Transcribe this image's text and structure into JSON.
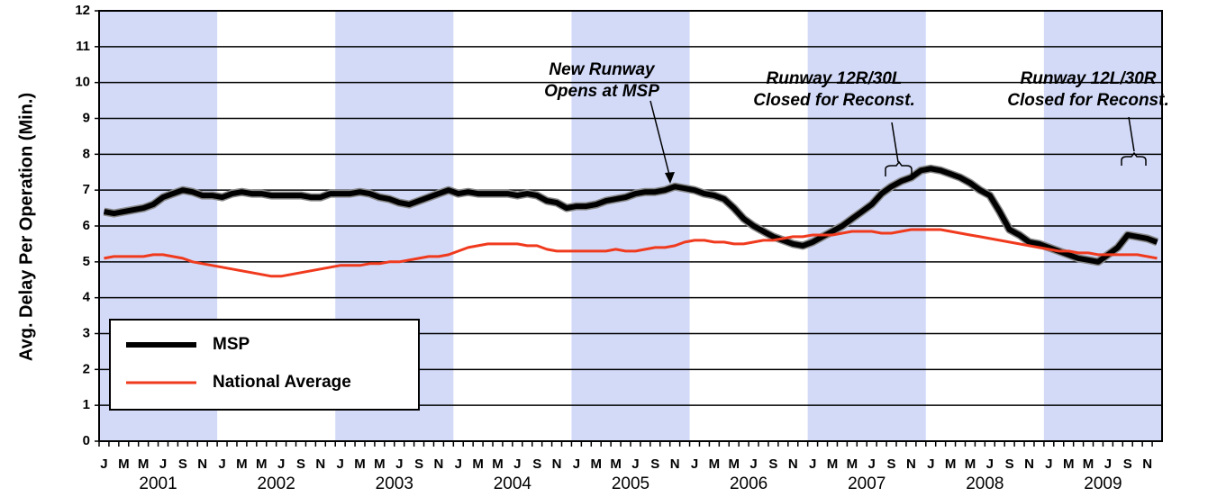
{
  "chart_data": {
    "type": "line",
    "ylabel": "Avg. Delay Per Operation (Min.)",
    "categories": [
      "J",
      null,
      "M",
      null,
      "M",
      null,
      "J",
      null,
      "S",
      null,
      "N",
      null,
      "J",
      null,
      "M",
      null,
      "M",
      null,
      "J",
      null,
      "S",
      null,
      "N",
      null,
      "J",
      null,
      "M",
      null,
      "M",
      null,
      "J",
      null,
      "S",
      null,
      "N",
      null,
      "J",
      null,
      "M",
      null,
      "M",
      null,
      "J",
      null,
      "S",
      null,
      "N",
      null,
      "J",
      null,
      "M",
      null,
      "M",
      null,
      "J",
      null,
      "S",
      null,
      "N",
      null,
      "J",
      null,
      "M",
      null,
      "M",
      null,
      "J",
      null,
      "S",
      null,
      "N",
      null,
      "J",
      null,
      "M",
      null,
      "M",
      null,
      "J",
      null,
      "S",
      null,
      "N",
      null,
      "J",
      null,
      "M",
      null,
      "M",
      null,
      "J",
      null,
      "S",
      null,
      "N",
      null,
      "J",
      null,
      "M",
      null,
      "M",
      null,
      "J",
      null,
      "S",
      null,
      "N",
      null
    ],
    "years": [
      "2001",
      "2002",
      "2003",
      "2004",
      "2005",
      "2006",
      "2007",
      "2008",
      "2009"
    ],
    "series": [
      {
        "name": "MSP",
        "color": "#000000",
        "values": [
          6.4,
          6.35,
          6.4,
          6.45,
          6.5,
          6.6,
          6.8,
          6.9,
          7.0,
          6.95,
          6.85,
          6.85,
          6.8,
          6.9,
          6.95,
          6.9,
          6.9,
          6.85,
          6.85,
          6.85,
          6.85,
          6.8,
          6.8,
          6.9,
          6.9,
          6.9,
          6.95,
          6.9,
          6.8,
          6.75,
          6.65,
          6.6,
          6.7,
          6.8,
          6.9,
          7.0,
          6.9,
          6.95,
          6.9,
          6.9,
          6.9,
          6.9,
          6.85,
          6.9,
          6.85,
          6.7,
          6.65,
          6.5,
          6.55,
          6.55,
          6.6,
          6.7,
          6.75,
          6.8,
          6.9,
          6.95,
          6.95,
          7.0,
          7.1,
          7.05,
          7.0,
          6.9,
          6.85,
          6.75,
          6.5,
          6.2,
          6.0,
          5.85,
          5.7,
          5.6,
          5.5,
          5.45,
          5.55,
          5.7,
          5.85,
          6.0,
          6.2,
          6.4,
          6.6,
          6.9,
          7.1,
          7.25,
          7.35,
          7.55,
          7.6,
          7.55,
          7.45,
          7.35,
          7.2,
          7.0,
          6.85,
          6.4,
          5.9,
          5.75,
          5.55,
          5.5,
          5.4,
          5.3,
          5.2,
          5.1,
          5.05,
          5.0,
          5.2,
          5.4,
          5.75,
          5.7,
          5.65,
          5.55
        ]
      },
      {
        "name": "National Average",
        "color": "#f03a1e",
        "values": [
          5.1,
          5.15,
          5.15,
          5.15,
          5.15,
          5.2,
          5.2,
          5.15,
          5.1,
          5.0,
          4.95,
          4.9,
          4.85,
          4.8,
          4.75,
          4.7,
          4.65,
          4.6,
          4.6,
          4.65,
          4.7,
          4.75,
          4.8,
          4.85,
          4.9,
          4.9,
          4.9,
          4.95,
          4.95,
          5.0,
          5.0,
          5.05,
          5.1,
          5.15,
          5.15,
          5.2,
          5.3,
          5.4,
          5.45,
          5.5,
          5.5,
          5.5,
          5.5,
          5.45,
          5.45,
          5.35,
          5.3,
          5.3,
          5.3,
          5.3,
          5.3,
          5.3,
          5.35,
          5.3,
          5.3,
          5.35,
          5.4,
          5.4,
          5.45,
          5.55,
          5.6,
          5.6,
          5.55,
          5.55,
          5.5,
          5.5,
          5.55,
          5.6,
          5.6,
          5.65,
          5.7,
          5.7,
          5.75,
          5.75,
          5.75,
          5.8,
          5.85,
          5.85,
          5.85,
          5.8,
          5.8,
          5.85,
          5.9,
          5.9,
          5.9,
          5.9,
          5.85,
          5.8,
          5.75,
          5.7,
          5.65,
          5.6,
          5.55,
          5.5,
          5.45,
          5.4,
          5.35,
          5.3,
          5.3,
          5.25,
          5.25,
          5.2,
          5.2,
          5.2,
          5.2,
          5.2,
          5.15,
          5.1
        ]
      }
    ],
    "ylim": [
      0,
      12
    ],
    "yticks": [
      0,
      1,
      2,
      3,
      4,
      5,
      6,
      7,
      8,
      9,
      10,
      11,
      12
    ],
    "grid": true,
    "legend": "lower left",
    "annotations": [
      {
        "lines": [
          "New Runway",
          "Opens at MSP"
        ]
      },
      {
        "lines": [
          "Runway 12R/30L",
          "Closed for Reconst."
        ]
      },
      {
        "lines": [
          "Runway 12L/30R",
          "Closed for Reconst."
        ]
      }
    ]
  }
}
